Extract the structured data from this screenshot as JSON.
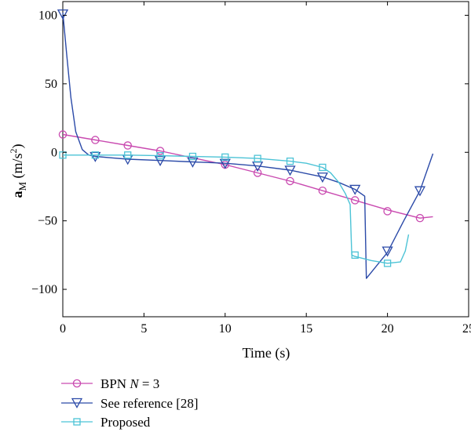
{
  "chart_data": {
    "type": "line",
    "xlabel": "Time (s)",
    "ylabel_main": "a",
    "ylabel_sub": "M",
    "ylabel_unit": "(m/s",
    "ylabel_sup": "2",
    "ylabel_close": ")",
    "xlim": [
      0,
      25
    ],
    "ylim": [
      -120,
      110
    ],
    "xticks": [
      0,
      5,
      10,
      15,
      20,
      25
    ],
    "xtick_labels": [
      "0",
      "5",
      "10",
      "15",
      "20",
      "25"
    ],
    "yticks": [
      100,
      50,
      0,
      -50,
      -100
    ],
    "ytick_labels": [
      "100",
      "50",
      "0",
      "−50",
      "−100"
    ],
    "grid": false,
    "legend_position": "below",
    "series": [
      {
        "name": "BPN",
        "name_italic": "N",
        "name_tail": " = 3",
        "color": "#c94ab0",
        "marker": "circle",
        "x": [
          0,
          2,
          4,
          6,
          8,
          10,
          12,
          14,
          16,
          18,
          20,
          22,
          22.8
        ],
        "y": [
          13,
          9,
          5,
          1,
          -4,
          -9,
          -15,
          -21,
          -28,
          -35,
          -42,
          -48,
          -47
        ],
        "marker_x": [
          0,
          2,
          4,
          6,
          10,
          12,
          14,
          16,
          18,
          20,
          22
        ],
        "marker_y": [
          13,
          9,
          5,
          1,
          -9,
          -15,
          -21,
          -28,
          -35,
          -43,
          -48
        ]
      },
      {
        "name": "See reference [28]",
        "color": "#2b4aa8",
        "marker": "triangle-down",
        "x": [
          0,
          0.25,
          0.5,
          0.8,
          1.2,
          1.6,
          2,
          3,
          4,
          6,
          8,
          10,
          12,
          14,
          16,
          17,
          18,
          18.6,
          18.7,
          20,
          21,
          22,
          22.8
        ],
        "y": [
          102,
          70,
          40,
          15,
          2,
          -2,
          -3,
          -4,
          -5,
          -6,
          -7,
          -8,
          -10,
          -13,
          -18,
          -22,
          -27,
          -32,
          -92,
          -73,
          -50,
          -28,
          -1
        ],
        "marker_x": [
          0,
          2,
          4,
          6,
          8,
          10,
          12,
          14,
          16,
          18,
          20,
          22
        ],
        "marker_y": [
          101,
          -3,
          -5,
          -6,
          -7,
          -8,
          -10,
          -13,
          -18,
          -27,
          -72,
          -28
        ]
      },
      {
        "name": "Proposed",
        "color": "#4cc3d6",
        "marker": "square",
        "x": [
          0,
          2,
          4,
          6,
          8,
          10,
          12,
          14,
          15,
          16,
          16.5,
          17,
          17.4,
          17.7,
          17.8,
          18,
          19,
          20,
          20.8,
          21.1,
          21.3
        ],
        "y": [
          -2,
          -2,
          -2,
          -2.5,
          -3,
          -3.5,
          -4.5,
          -6.5,
          -8,
          -11,
          -15,
          -22,
          -30,
          -38,
          -75,
          -76,
          -79,
          -81,
          -80,
          -72,
          -60
        ],
        "marker_x": [
          0,
          2,
          4,
          6,
          8,
          10,
          12,
          14,
          16,
          18,
          20
        ],
        "marker_y": [
          -2,
          -2,
          -2,
          -2.5,
          -3,
          -3.5,
          -4.5,
          -6.5,
          -11,
          -75,
          -81
        ]
      }
    ]
  }
}
